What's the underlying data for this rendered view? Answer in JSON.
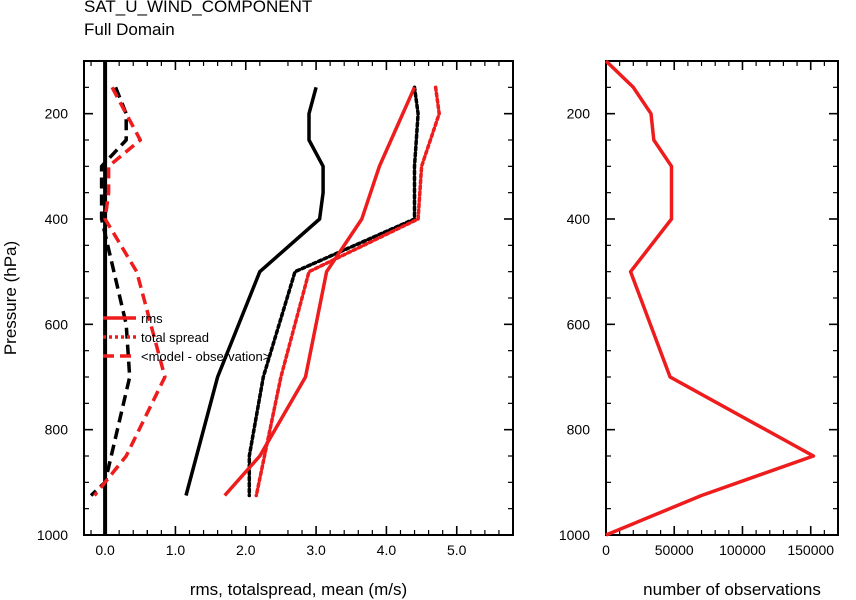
{
  "figure": {
    "title": "SAT_U_WIND_COMPONENT",
    "subtitle": "Full Domain"
  },
  "colors": {
    "red": "#ee1c1c",
    "black": "#000000"
  },
  "chart_data": [
    {
      "type": "line",
      "title": "SAT_U_WIND_COMPONENT",
      "subtitle": "Full Domain",
      "xlabel": "rms, totalspread, mean (m/s)",
      "ylabel": "Pressure (hPa)",
      "xlim": [
        -0.3,
        5.8
      ],
      "ylim": [
        1000,
        100
      ],
      "y_inverted": true,
      "xticks": [
        0.0,
        1.0,
        2.0,
        3.0,
        4.0,
        5.0
      ],
      "xtick_labels": [
        "0.0",
        "1.0",
        "2.0",
        "3.0",
        "4.0",
        "5.0"
      ],
      "yticks": [
        200,
        400,
        600,
        800,
        1000
      ],
      "ytick_labels": [
        "200",
        "400",
        "600",
        "800",
        "1000"
      ],
      "grid": false,
      "legend_position": "center-left",
      "legend": [
        "rms",
        "total spread",
        "<model - observation>"
      ],
      "series": [
        {
          "color": "black",
          "style": "solid",
          "points": [
            [
              3.0,
              150
            ],
            [
              2.9,
              200
            ],
            [
              2.9,
              250
            ],
            [
              3.1,
              300
            ],
            [
              3.1,
              350
            ],
            [
              3.05,
              400
            ],
            [
              2.2,
              500
            ],
            [
              1.6,
              700
            ],
            [
              1.15,
              925
            ]
          ]
        },
        {
          "color": "black",
          "style": "dotted",
          "points": [
            [
              4.4,
              150
            ],
            [
              4.45,
              200
            ],
            [
              4.4,
              300
            ],
            [
              4.4,
              400
            ],
            [
              2.7,
              500
            ],
            [
              2.25,
              700
            ],
            [
              2.05,
              850
            ],
            [
              2.05,
              925
            ]
          ]
        },
        {
          "color": "black",
          "style": "dashed",
          "points": [
            [
              0.15,
              150
            ],
            [
              0.3,
              200
            ],
            [
              0.3,
              250
            ],
            [
              -0.05,
              300
            ],
            [
              -0.05,
              350
            ],
            [
              -0.05,
              400
            ],
            [
              0.3,
              600
            ],
            [
              0.35,
              700
            ],
            [
              0.0,
              900
            ],
            [
              -0.2,
              925
            ]
          ]
        },
        {
          "color": "black",
          "style": "solid-thick",
          "note": "zero reference",
          "points": [
            [
              0.0,
              100
            ],
            [
              0.0,
              1000
            ]
          ]
        },
        {
          "name": "rms",
          "color": "red",
          "style": "solid",
          "points": [
            [
              4.4,
              150
            ],
            [
              3.9,
              300
            ],
            [
              3.65,
              400
            ],
            [
              3.15,
              500
            ],
            [
              2.85,
              700
            ],
            [
              2.2,
              850
            ],
            [
              1.7,
              925
            ]
          ]
        },
        {
          "name": "total spread",
          "color": "red",
          "style": "dotted",
          "points": [
            [
              4.7,
              150
            ],
            [
              4.75,
              200
            ],
            [
              4.5,
              300
            ],
            [
              4.45,
              400
            ],
            [
              2.9,
              500
            ],
            [
              2.5,
              700
            ],
            [
              2.15,
              925
            ]
          ]
        },
        {
          "name": "<model - observation>",
          "color": "red",
          "style": "dashed",
          "points": [
            [
              0.1,
              150
            ],
            [
              0.3,
              200
            ],
            [
              0.5,
              250
            ],
            [
              0.05,
              300
            ],
            [
              0.05,
              350
            ],
            [
              0.0,
              400
            ],
            [
              0.45,
              500
            ],
            [
              0.85,
              700
            ],
            [
              0.3,
              850
            ],
            [
              -0.15,
              925
            ]
          ]
        }
      ]
    },
    {
      "type": "line",
      "xlabel": "number of observations",
      "ylabel": "",
      "xlim": [
        0,
        170000
      ],
      "ylim": [
        1000,
        100
      ],
      "y_inverted": true,
      "xticks": [
        0,
        50000,
        100000,
        150000
      ],
      "xtick_labels": [
        "0",
        "50000",
        "100000",
        "150000"
      ],
      "yticks": [
        200,
        400,
        600,
        800,
        1000
      ],
      "ytick_labels": [
        "200",
        "400",
        "600",
        "800",
        "1000"
      ],
      "grid": false,
      "series": [
        {
          "color": "red",
          "style": "solid",
          "points": [
            [
              0,
              100
            ],
            [
              20000,
              150
            ],
            [
              33000,
              200
            ],
            [
              35000,
              250
            ],
            [
              48000,
              300
            ],
            [
              48000,
              400
            ],
            [
              18000,
              500
            ],
            [
              47000,
              700
            ],
            [
              152000,
              850
            ],
            [
              70000,
              925
            ],
            [
              0,
              1000
            ]
          ]
        }
      ]
    }
  ]
}
